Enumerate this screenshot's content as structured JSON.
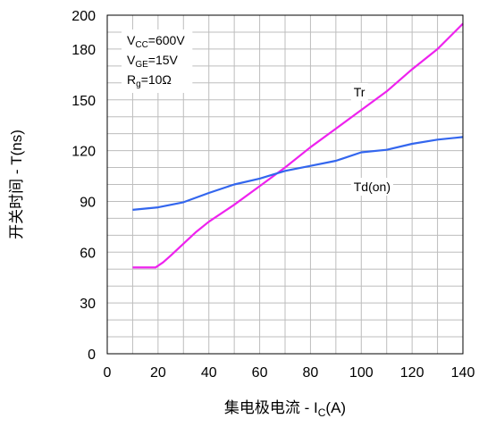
{
  "chart_data": {
    "type": "line",
    "title": "",
    "xlabel": {
      "prefix": "集电极电流 - I",
      "sub": "C",
      "suffix": "(A)"
    },
    "ylabel": "开关时间 - T(ns)",
    "xlim": [
      0,
      140
    ],
    "ylim": [
      0,
      200
    ],
    "x_ticks": [
      0,
      20,
      40,
      60,
      80,
      100,
      120,
      140
    ],
    "y_ticks": [
      0,
      30,
      60,
      90,
      120,
      150,
      180,
      200
    ],
    "grid": true,
    "series": [
      {
        "name": "Tr",
        "color": "#ee22ee",
        "points": [
          [
            10,
            51
          ],
          [
            15,
            51
          ],
          [
            19,
            51
          ],
          [
            22,
            54
          ],
          [
            25,
            58
          ],
          [
            30,
            65
          ],
          [
            35,
            72
          ],
          [
            40,
            78
          ],
          [
            50,
            88
          ],
          [
            60,
            99
          ],
          [
            70,
            110
          ],
          [
            80,
            122
          ],
          [
            90,
            133
          ],
          [
            100,
            144
          ],
          [
            110,
            155
          ],
          [
            120,
            168
          ],
          [
            130,
            180
          ],
          [
            140,
            195
          ]
        ]
      },
      {
        "name": "Td(on)",
        "color": "#3366ee",
        "points": [
          [
            10,
            85
          ],
          [
            20,
            86.5
          ],
          [
            30,
            89.5
          ],
          [
            40,
            95
          ],
          [
            50,
            100
          ],
          [
            60,
            103.5
          ],
          [
            70,
            108
          ],
          [
            80,
            111
          ],
          [
            90,
            114
          ],
          [
            100,
            119
          ],
          [
            110,
            120.5
          ],
          [
            120,
            124
          ],
          [
            130,
            126.5
          ],
          [
            140,
            128
          ]
        ]
      }
    ],
    "annotations": [
      {
        "text": "Tr",
        "x": 97,
        "y": 152
      },
      {
        "text": "Td(on)",
        "x": 97,
        "y": 96
      }
    ],
    "conditions": [
      {
        "main": "V",
        "sub": "CC",
        "rest": "=600V"
      },
      {
        "main": "V",
        "sub": "GE",
        "rest": "=15V"
      },
      {
        "main": "R",
        "sub": "g",
        "rest": "=10Ω"
      }
    ]
  }
}
